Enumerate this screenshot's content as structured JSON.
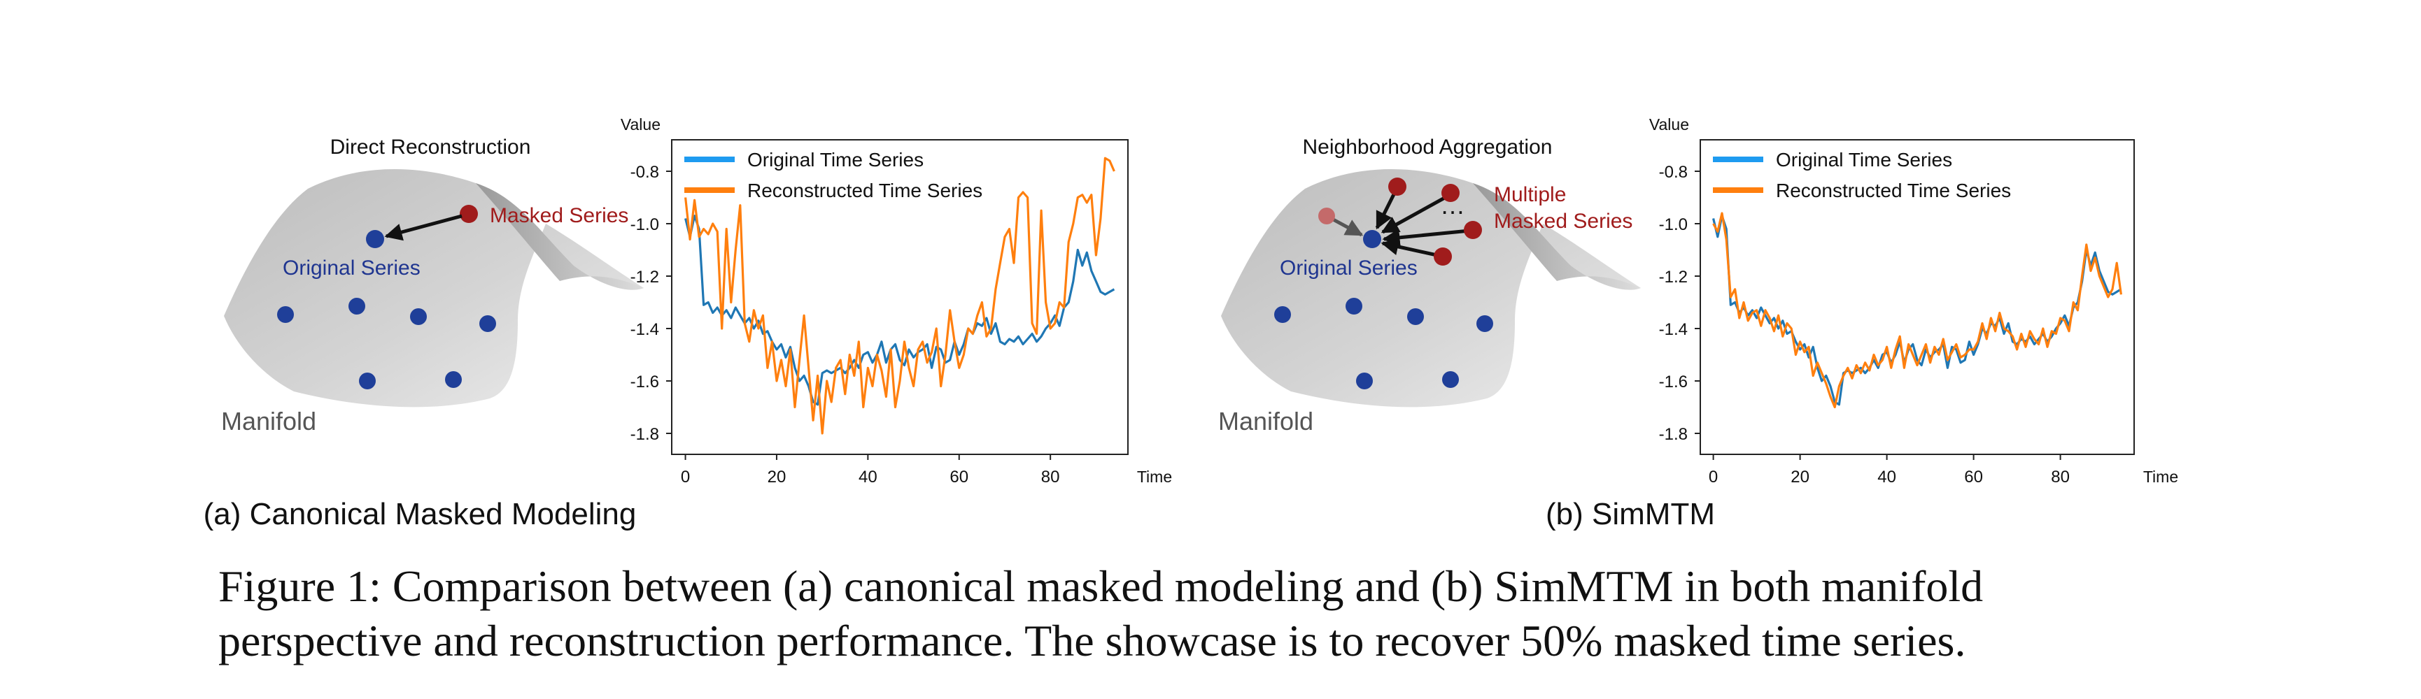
{
  "colors": {
    "original": "#1f77b4",
    "original_legend": "#1e9bf0",
    "reconstructed": "#ff7f0e",
    "dot_blue": "#1f3f99",
    "dot_red": "#a01c1c",
    "dot_red_faded": "#c46a6a",
    "label_blue": "#1f3590",
    "label_red": "#a01c1c",
    "manifold_label": "#555555"
  },
  "panel_a": {
    "title": "Direct Reconstruction",
    "masked_label": "Masked Series",
    "original_label": "Original Series",
    "manifold_label": "Manifold",
    "subcaption": "(a) Canonical Masked Modeling"
  },
  "panel_b": {
    "title": "Neighborhood Aggregation",
    "masked_label_line1": "Multiple",
    "masked_label_line2": "Masked Series",
    "ellipsis": "…",
    "original_label": "Original Series",
    "manifold_label": "Manifold",
    "subcaption": "(b) SimMTM"
  },
  "chart_data": [
    {
      "type": "line",
      "ylabel": "Value",
      "xlabel": "Time",
      "xlim": [
        -3,
        97
      ],
      "ylim": [
        -1.88,
        -0.68
      ],
      "xticks": [
        0,
        20,
        40,
        60,
        80
      ],
      "xtick_labels": [
        "0",
        "20",
        "40",
        "60",
        "80"
      ],
      "yticks": [
        -0.8,
        -1.0,
        -1.2,
        -1.4,
        -1.6,
        -1.8
      ],
      "ytick_labels": [
        "-0.8",
        "-1.0",
        "-1.2",
        "-1.4",
        "-1.6",
        "-1.8"
      ],
      "legend_position": "top-left",
      "series": [
        {
          "name": "Original Time Series",
          "values": [
            -0.98,
            -1.05,
            -0.97,
            -1.02,
            -1.31,
            -1.3,
            -1.34,
            -1.32,
            -1.35,
            -1.33,
            -1.36,
            -1.32,
            -1.35,
            -1.38,
            -1.36,
            -1.4,
            -1.37,
            -1.42,
            -1.41,
            -1.45,
            -1.48,
            -1.46,
            -1.51,
            -1.47,
            -1.55,
            -1.6,
            -1.58,
            -1.62,
            -1.68,
            -1.69,
            -1.57,
            -1.56,
            -1.57,
            -1.56,
            -1.55,
            -1.57,
            -1.55,
            -1.52,
            -1.55,
            -1.5,
            -1.49,
            -1.53,
            -1.5,
            -1.45,
            -1.53,
            -1.48,
            -1.46,
            -1.52,
            -1.54,
            -1.48,
            -1.51,
            -1.49,
            -1.48,
            -1.46,
            -1.55,
            -1.47,
            -1.48,
            -1.53,
            -1.52,
            -1.45,
            -1.5,
            -1.46,
            -1.4,
            -1.42,
            -1.38,
            -1.39,
            -1.36,
            -1.42,
            -1.38,
            -1.45,
            -1.46,
            -1.44,
            -1.45,
            -1.43,
            -1.46,
            -1.44,
            -1.42,
            -1.45,
            -1.43,
            -1.4,
            -1.38,
            -1.35,
            -1.39,
            -1.32,
            -1.3,
            -1.22,
            -1.1,
            -1.16,
            -1.11,
            -1.18,
            -1.22,
            -1.26,
            -1.27,
            -1.26,
            -1.25
          ]
        },
        {
          "name": "Reconstructed Time Series",
          "values": [
            -0.9,
            -1.06,
            -0.91,
            -1.05,
            -1.02,
            -1.04,
            -1.0,
            -1.03,
            -1.4,
            -1.02,
            -1.3,
            -1.1,
            -0.93,
            -1.38,
            -1.45,
            -1.33,
            -1.4,
            -1.35,
            -1.55,
            -1.45,
            -1.6,
            -1.52,
            -1.62,
            -1.48,
            -1.7,
            -1.52,
            -1.35,
            -1.55,
            -1.75,
            -1.58,
            -1.8,
            -1.6,
            -1.68,
            -1.55,
            -1.52,
            -1.65,
            -1.5,
            -1.58,
            -1.45,
            -1.7,
            -1.55,
            -1.62,
            -1.5,
            -1.56,
            -1.66,
            -1.48,
            -1.7,
            -1.6,
            -1.45,
            -1.55,
            -1.62,
            -1.48,
            -1.45,
            -1.53,
            -1.49,
            -1.4,
            -1.62,
            -1.5,
            -1.33,
            -1.45,
            -1.55,
            -1.5,
            -1.4,
            -1.42,
            -1.35,
            -1.3,
            -1.43,
            -1.4,
            -1.25,
            -1.15,
            -1.05,
            -1.02,
            -1.15,
            -0.9,
            -0.88,
            -0.9,
            -1.38,
            -1.42,
            -0.95,
            -1.3,
            -1.4,
            -1.38,
            -1.3,
            -1.32,
            -1.07,
            -1.0,
            -0.9,
            -0.89,
            -0.92,
            -0.89,
            -1.12,
            -0.98,
            -0.75,
            -0.76,
            -0.8
          ]
        }
      ]
    },
    {
      "type": "line",
      "ylabel": "Value",
      "xlabel": "Time",
      "xlim": [
        -3,
        97
      ],
      "ylim": [
        -1.88,
        -0.68
      ],
      "xticks": [
        0,
        20,
        40,
        60,
        80
      ],
      "xtick_labels": [
        "0",
        "20",
        "40",
        "60",
        "80"
      ],
      "yticks": [
        -0.8,
        -1.0,
        -1.2,
        -1.4,
        -1.6,
        -1.8
      ],
      "ytick_labels": [
        "-0.8",
        "-1.0",
        "-1.2",
        "-1.4",
        "-1.6",
        "-1.8"
      ],
      "legend_position": "top-left",
      "series": [
        {
          "name": "Original Time Series",
          "values": [
            -0.98,
            -1.05,
            -0.97,
            -1.02,
            -1.31,
            -1.3,
            -1.34,
            -1.32,
            -1.35,
            -1.33,
            -1.36,
            -1.32,
            -1.35,
            -1.38,
            -1.36,
            -1.4,
            -1.37,
            -1.42,
            -1.41,
            -1.45,
            -1.48,
            -1.46,
            -1.51,
            -1.47,
            -1.55,
            -1.6,
            -1.58,
            -1.62,
            -1.68,
            -1.69,
            -1.57,
            -1.56,
            -1.57,
            -1.56,
            -1.55,
            -1.57,
            -1.55,
            -1.52,
            -1.55,
            -1.5,
            -1.49,
            -1.53,
            -1.5,
            -1.45,
            -1.53,
            -1.48,
            -1.46,
            -1.52,
            -1.54,
            -1.48,
            -1.51,
            -1.49,
            -1.48,
            -1.46,
            -1.55,
            -1.47,
            -1.48,
            -1.53,
            -1.52,
            -1.45,
            -1.5,
            -1.46,
            -1.4,
            -1.42,
            -1.38,
            -1.39,
            -1.36,
            -1.42,
            -1.38,
            -1.45,
            -1.46,
            -1.44,
            -1.45,
            -1.43,
            -1.46,
            -1.44,
            -1.42,
            -1.45,
            -1.43,
            -1.4,
            -1.38,
            -1.35,
            -1.39,
            -1.32,
            -1.3,
            -1.22,
            -1.1,
            -1.16,
            -1.11,
            -1.18,
            -1.22,
            -1.26,
            -1.27,
            -1.26,
            -1.25
          ]
        },
        {
          "name": "Reconstructed Time Series",
          "values": [
            -1.0,
            -1.03,
            -0.96,
            -1.06,
            -1.28,
            -1.25,
            -1.36,
            -1.3,
            -1.37,
            -1.34,
            -1.33,
            -1.39,
            -1.33,
            -1.36,
            -1.41,
            -1.35,
            -1.43,
            -1.38,
            -1.4,
            -1.5,
            -1.45,
            -1.49,
            -1.47,
            -1.58,
            -1.53,
            -1.57,
            -1.61,
            -1.66,
            -1.7,
            -1.62,
            -1.58,
            -1.55,
            -1.59,
            -1.54,
            -1.57,
            -1.53,
            -1.56,
            -1.5,
            -1.54,
            -1.52,
            -1.47,
            -1.55,
            -1.48,
            -1.43,
            -1.55,
            -1.46,
            -1.5,
            -1.54,
            -1.5,
            -1.46,
            -1.53,
            -1.47,
            -1.5,
            -1.44,
            -1.52,
            -1.49,
            -1.46,
            -1.51,
            -1.5,
            -1.48,
            -1.48,
            -1.45,
            -1.38,
            -1.44,
            -1.36,
            -1.41,
            -1.34,
            -1.4,
            -1.41,
            -1.43,
            -1.48,
            -1.42,
            -1.47,
            -1.41,
            -1.44,
            -1.46,
            -1.4,
            -1.47,
            -1.41,
            -1.42,
            -1.36,
            -1.37,
            -1.41,
            -1.3,
            -1.33,
            -1.2,
            -1.08,
            -1.18,
            -1.13,
            -1.2,
            -1.24,
            -1.28,
            -1.25,
            -1.15,
            -1.27
          ]
        }
      ]
    }
  ],
  "caption": {
    "line1": "Figure 1: Comparison between (a) canonical masked modeling and (b) SimMTM in both manifold",
    "line2": "perspective and reconstruction performance. The showcase is to recover 50% masked time series."
  }
}
